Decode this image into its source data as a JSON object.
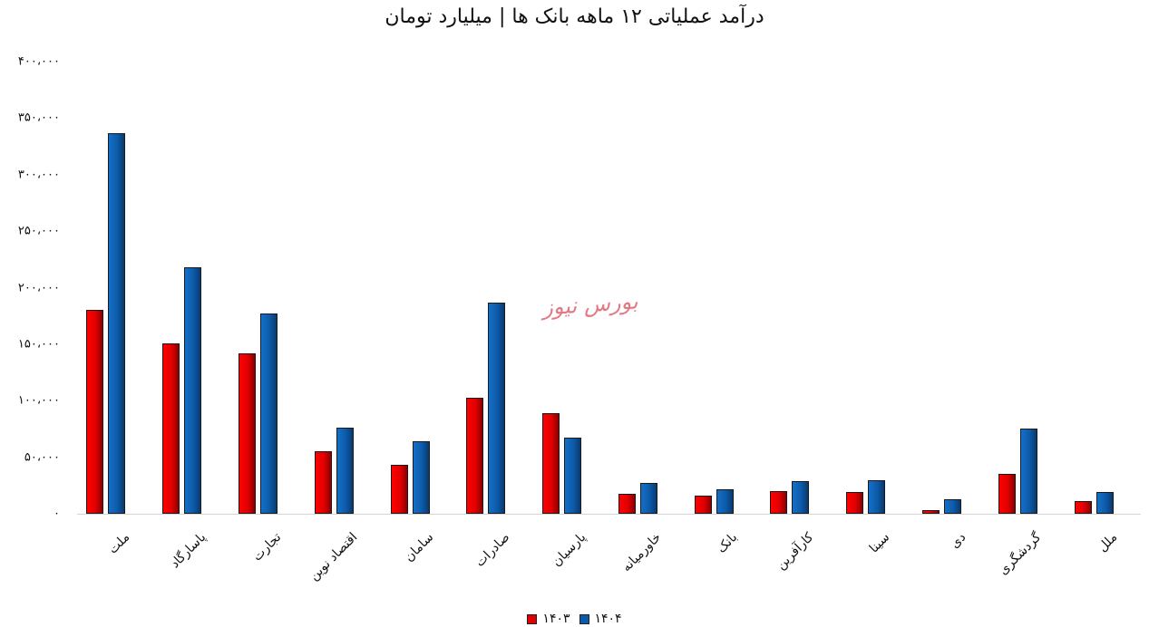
{
  "title": "درآمد عملیاتی ۱۲ ماهه بانک ها | میلیارد تومان",
  "watermark": "بورس نیوز",
  "y_ticks": [
    "۴۰۰،۰۰۰",
    "۳۵۰،۰۰۰",
    "۳۰۰،۰۰۰",
    "۲۵۰،۰۰۰",
    "۲۰۰،۰۰۰",
    "۱۵۰،۰۰۰",
    "۱۰۰،۰۰۰",
    "۵۰،۰۰۰",
    "۰"
  ],
  "legend": [
    {
      "label": "۱۴۰۳",
      "color": "#e00000"
    },
    {
      "label": "۱۴۰۴",
      "color": "#0d5aa8"
    }
  ],
  "chart_data": {
    "type": "bar",
    "title": "درآمد عملیاتی ۱۲ ماهه بانک ها | میلیارد تومان",
    "xlabel": "",
    "ylabel": "",
    "ylim": [
      0,
      400000
    ],
    "grid": false,
    "legend_position": "bottom",
    "categories": [
      "ملت",
      "پاسارگاد",
      "تجارت",
      "اقتصاد نوین",
      "سامان",
      "صادرات",
      "پارسیان",
      "خاورمیانه",
      "بانک",
      "کارآفرین",
      "سینا",
      "دی",
      "گردشگری",
      "ملل"
    ],
    "series": [
      {
        "name": "۱۴۰۳",
        "color": "#e00000",
        "values": [
          180000,
          151000,
          142000,
          55000,
          43000,
          103000,
          89000,
          18000,
          16000,
          20000,
          19000,
          3000,
          35000,
          11000
        ]
      },
      {
        "name": "۱۴۰۴",
        "color": "#0d5aa8",
        "values": [
          337000,
          218000,
          177000,
          76000,
          64000,
          187000,
          67000,
          27000,
          22000,
          29000,
          30000,
          13000,
          75000,
          19000
        ]
      }
    ]
  }
}
